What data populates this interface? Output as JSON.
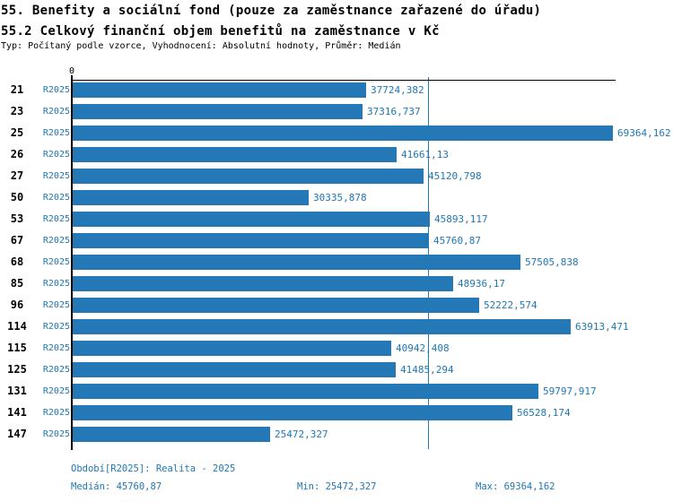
{
  "colors": {
    "bar": "#2378b5",
    "blue_text": "#1f77b4",
    "axis": "#000000",
    "background": "#ffffff"
  },
  "chart_data": {
    "type": "bar",
    "orientation": "horizontal",
    "title": "55. Benefity a sociální fond (pouze za zaměstnance zařazené do úřadu)",
    "subtitle": "55.2 Celkový finanční objem benefitů na zaměstnance v Kč",
    "meta": "Typ: Počítaný podle vzorce, Vyhodnocení: Absolutní hodnoty, Průměr: Medián",
    "series_label": "R2025",
    "x_axis_tick_labels": [
      "0"
    ],
    "xlim": [
      0,
      69700
    ],
    "grid": false,
    "legend": false,
    "median_value": 45760.87,
    "categories": [
      "21",
      "23",
      "25",
      "26",
      "27",
      "50",
      "53",
      "67",
      "68",
      "85",
      "96",
      "114",
      "115",
      "125",
      "131",
      "141",
      "147"
    ],
    "values": [
      37724.382,
      37316.737,
      69364.162,
      41661.13,
      45120.798,
      30335.878,
      45893.117,
      45760.87,
      57505.838,
      48936.17,
      52222.574,
      63913.471,
      40942.408,
      41485.294,
      59797.917,
      56528.174,
      25472.327
    ],
    "value_labels": [
      "37724,382",
      "37316,737",
      "69364,162",
      "41661,13",
      "45120,798",
      "30335,878",
      "45893,117",
      "45760,87",
      "57505,838",
      "48936,17",
      "52222,574",
      "63913,471",
      "40942,408",
      "41485,294",
      "59797,917",
      "56528,174",
      "25472,327"
    ]
  },
  "footer": {
    "period": "Období[R2025]: Realita - 2025",
    "median": "Medián: 45760,87",
    "min": "Min: 25472,327",
    "max": "Max: 69364,162"
  }
}
